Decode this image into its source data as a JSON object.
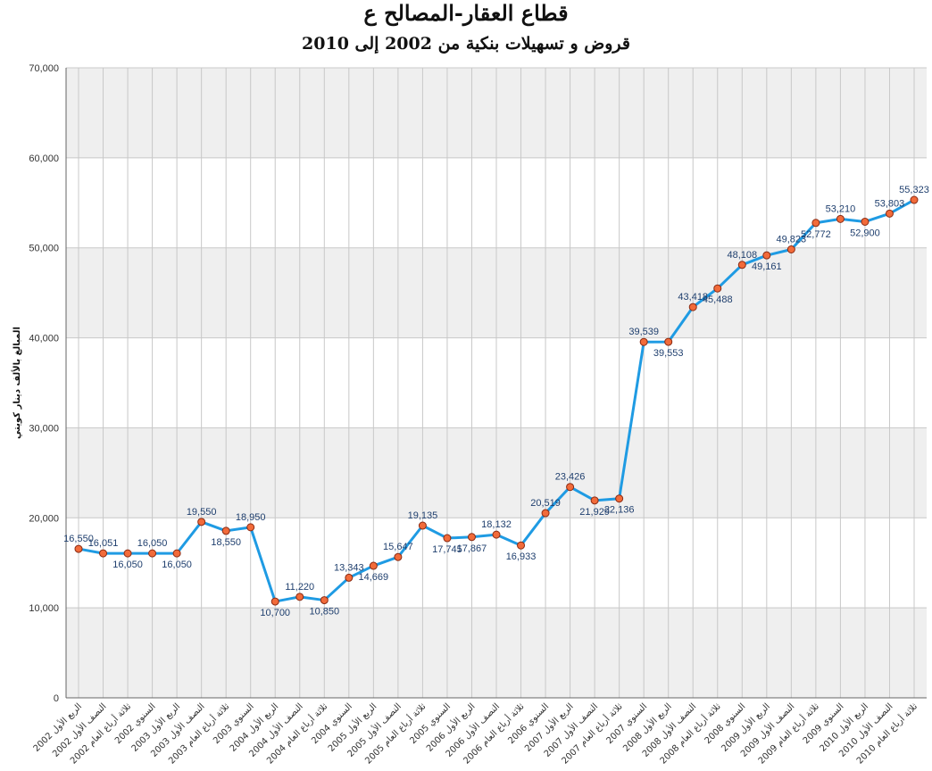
{
  "chart_data": {
    "type": "line",
    "title": "قطاع العقار-المصالح ع",
    "subtitle": "قروض و تسهيلات بنكية من 2002 إلى 2010",
    "xlabel": "",
    "ylabel": "المبالغ بالألف دينار كويتي",
    "ylim": [
      0,
      70000
    ],
    "y_ticks": [
      "0",
      "10,000",
      "20,000",
      "30,000",
      "40,000",
      "50,000",
      "60,000",
      "70,000"
    ],
    "y_tick_values": [
      0,
      10000,
      20000,
      30000,
      40000,
      50000,
      60000,
      70000
    ],
    "grid": true,
    "legend": "none",
    "categories": [
      "الربع الأول 2002",
      "النصف الأول 2002",
      "ثلاثة أرباع العام 2002",
      "السنوي 2002",
      "الربع الأول 2003",
      "النصف الأول 2003",
      "ثلاثة أرباع العام 2003",
      "السنوي 2003",
      "الربع الأول 2004",
      "النصف الأول 2004",
      "ثلاثة أرباع العام 2004",
      "السنوي 2004",
      "الربع الأول 2005",
      "النصف الأول 2005",
      "ثلاثة أرباع العام 2005",
      "السنوي 2005",
      "الربع الأول 2006",
      "النصف الأول 2006",
      "ثلاثة أرباع العام 2006",
      "السنوي 2006",
      "الربع الأول 2007",
      "النصف الأول 2007",
      "ثلاثة أرباع العام 2007",
      "السنوي 2007",
      "الربع الأول 2008",
      "النصف الأول 2008",
      "ثلاثة أرباع العام 2008",
      "السنوي 2008",
      "الربع الأول 2009",
      "النصف الأول 2009",
      "ثلاثة أرباع العام 2009",
      "السنوي 2009",
      "الربع الأول 2010",
      "النصف الأول 2010",
      "ثلاثة أرباع العام 2010"
    ],
    "series": [
      {
        "values": [
          16550,
          16051,
          16050,
          16050,
          16050,
          19550,
          18550,
          18950,
          10700,
          11220,
          10850,
          13343,
          14669,
          15647,
          19135,
          17745,
          17867,
          18132,
          16933,
          20519,
          23426,
          21929,
          22136,
          39539,
          39553,
          43418,
          45488,
          48108,
          49161,
          49823,
          52772,
          53210,
          52900,
          53803,
          55323
        ],
        "labels": [
          "16,550",
          "16,051",
          "16,050",
          "16,050",
          "16,050",
          "19,550",
          "18,550",
          "18,950",
          "10,700",
          "11,220",
          "10,850",
          "13,343",
          "14,669",
          "15,647",
          "19,135",
          "17,745",
          "17,867",
          "18,132",
          "16,933",
          "20,519",
          "23,426",
          "21,929",
          "22,136",
          "39,539",
          "39,553",
          "43,418",
          "45,488",
          "48,108",
          "49,161",
          "49,823",
          "52,772",
          "53,210",
          "52,900",
          "53,803",
          "55,323"
        ]
      }
    ],
    "colors": {
      "line": "#1f9be3",
      "marker_fill": "#f26b3a",
      "marker_stroke": "#8a2a12",
      "band": "#efefef",
      "grid": "#c8c8c8"
    }
  }
}
